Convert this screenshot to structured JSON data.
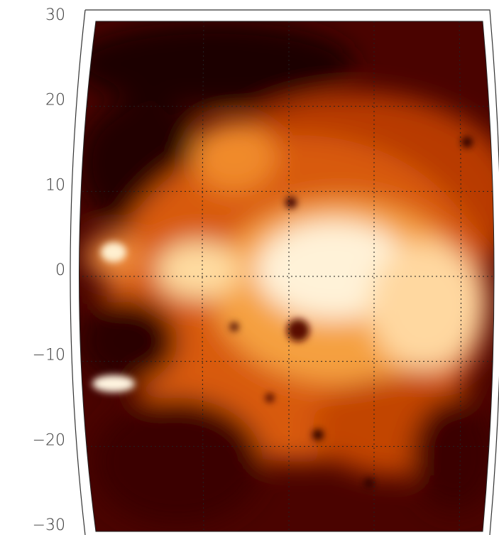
{
  "chart_data": {
    "type": "image",
    "ylim": [
      -30,
      30
    ],
    "yticks": [
      -30,
      -20,
      -10,
      0,
      10,
      20,
      30
    ],
    "ytick_labels": [
      {
        "value": -30,
        "label": "−30"
      },
      {
        "value": -20,
        "label": "−20"
      },
      {
        "value": -10,
        "label": "−10"
      },
      {
        "value": 0,
        "label": "0"
      },
      {
        "value": 10,
        "label": "10"
      },
      {
        "value": 20,
        "label": "20"
      },
      {
        "value": 30,
        "label": "30"
      }
    ],
    "grid": true
  }
}
